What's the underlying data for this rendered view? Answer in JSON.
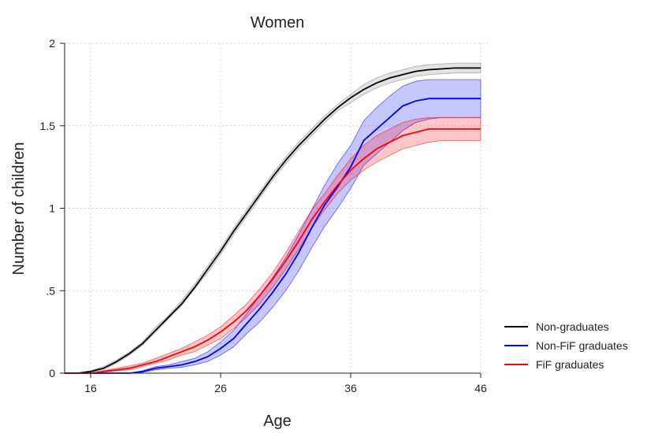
{
  "chart_data": {
    "type": "line",
    "title": "Women",
    "xlabel": "Age",
    "ylabel": "Number of children",
    "xlim": [
      14,
      46
    ],
    "ylim": [
      0,
      2
    ],
    "xticks": [
      16,
      26,
      36,
      46
    ],
    "xtick_labels": [
      "16",
      "26",
      "36",
      "46"
    ],
    "yticks": [
      0,
      0.5,
      1,
      1.5,
      2
    ],
    "ytick_labels": [
      "0",
      ".5",
      "1",
      "1.5",
      "2"
    ],
    "grid": true,
    "legend_position": "bottom-right",
    "series": [
      {
        "name": "Non-graduates",
        "color": "#000000",
        "band_color": "#808080",
        "x": [
          14,
          15,
          16,
          17,
          18,
          19,
          20,
          21,
          22,
          23,
          24,
          25,
          26,
          27,
          28,
          29,
          30,
          31,
          32,
          33,
          34,
          35,
          36,
          37,
          38,
          39,
          40,
          41,
          42,
          43,
          44,
          45,
          46
        ],
        "values": [
          0,
          0,
          0.01,
          0.03,
          0.07,
          0.12,
          0.18,
          0.26,
          0.34,
          0.42,
          0.52,
          0.63,
          0.74,
          0.86,
          0.97,
          1.08,
          1.19,
          1.29,
          1.38,
          1.46,
          1.54,
          1.61,
          1.67,
          1.72,
          1.76,
          1.79,
          1.81,
          1.83,
          1.84,
          1.845,
          1.85,
          1.85,
          1.85
        ],
        "lower": [
          0,
          0,
          0.005,
          0.02,
          0.06,
          0.11,
          0.17,
          0.25,
          0.33,
          0.41,
          0.51,
          0.61,
          0.72,
          0.84,
          0.95,
          1.06,
          1.17,
          1.27,
          1.36,
          1.44,
          1.52,
          1.59,
          1.64,
          1.69,
          1.73,
          1.76,
          1.78,
          1.8,
          1.81,
          1.815,
          1.82,
          1.82,
          1.82
        ],
        "upper": [
          0,
          0,
          0.015,
          0.04,
          0.08,
          0.13,
          0.19,
          0.28,
          0.35,
          0.44,
          0.54,
          0.65,
          0.76,
          0.88,
          0.99,
          1.1,
          1.21,
          1.31,
          1.4,
          1.48,
          1.56,
          1.63,
          1.69,
          1.75,
          1.79,
          1.82,
          1.84,
          1.86,
          1.87,
          1.875,
          1.88,
          1.88,
          1.88
        ]
      },
      {
        "name": "Non-FiF graduates",
        "color": "#0000ff",
        "band_color": "#0000ff",
        "x": [
          14,
          15,
          16,
          17,
          18,
          19,
          20,
          21,
          22,
          23,
          24,
          25,
          26,
          27,
          28,
          29,
          30,
          31,
          32,
          33,
          34,
          35,
          36,
          37,
          38,
          39,
          40,
          41,
          42,
          43,
          44,
          45,
          46
        ],
        "values": [
          0,
          0,
          0,
          0,
          0,
          0,
          0.01,
          0.03,
          0.04,
          0.05,
          0.07,
          0.1,
          0.15,
          0.21,
          0.3,
          0.39,
          0.49,
          0.6,
          0.73,
          0.88,
          1.02,
          1.13,
          1.25,
          1.41,
          1.48,
          1.55,
          1.62,
          1.65,
          1.665,
          1.665,
          1.665,
          1.665,
          1.665
        ],
        "lower": [
          0,
          0,
          0,
          0,
          0,
          0,
          0.005,
          0.02,
          0.03,
          0.035,
          0.05,
          0.07,
          0.11,
          0.16,
          0.24,
          0.31,
          0.4,
          0.5,
          0.62,
          0.76,
          0.89,
          1.0,
          1.12,
          1.26,
          1.33,
          1.4,
          1.47,
          1.52,
          1.54,
          1.55,
          1.55,
          1.55,
          1.55
        ],
        "upper": [
          0,
          0,
          0,
          0,
          0,
          0,
          0.015,
          0.04,
          0.05,
          0.07,
          0.09,
          0.13,
          0.19,
          0.26,
          0.36,
          0.47,
          0.58,
          0.7,
          0.84,
          0.99,
          1.14,
          1.27,
          1.38,
          1.53,
          1.61,
          1.68,
          1.74,
          1.77,
          1.78,
          1.78,
          1.78,
          1.78,
          1.78
        ]
      },
      {
        "name": "FiF graduates",
        "color": "#ff0000",
        "band_color": "#ff0000",
        "x": [
          14,
          15,
          16,
          17,
          18,
          19,
          20,
          21,
          22,
          23,
          24,
          25,
          26,
          27,
          28,
          29,
          30,
          31,
          32,
          33,
          34,
          35,
          36,
          37,
          38,
          39,
          40,
          41,
          42,
          43,
          44,
          45,
          46
        ],
        "values": [
          0,
          0,
          0,
          0.01,
          0.02,
          0.03,
          0.05,
          0.07,
          0.1,
          0.13,
          0.16,
          0.2,
          0.25,
          0.31,
          0.38,
          0.47,
          0.57,
          0.68,
          0.8,
          0.93,
          1.04,
          1.14,
          1.23,
          1.3,
          1.36,
          1.4,
          1.44,
          1.46,
          1.48,
          1.48,
          1.48,
          1.48,
          1.48
        ],
        "lower": [
          0,
          0,
          0,
          0.005,
          0.015,
          0.02,
          0.04,
          0.06,
          0.08,
          0.11,
          0.13,
          0.17,
          0.21,
          0.27,
          0.34,
          0.42,
          0.52,
          0.63,
          0.75,
          0.88,
          0.99,
          1.09,
          1.17,
          1.23,
          1.28,
          1.32,
          1.36,
          1.38,
          1.4,
          1.41,
          1.41,
          1.41,
          1.41
        ],
        "upper": [
          0,
          0,
          0,
          0.015,
          0.03,
          0.045,
          0.06,
          0.09,
          0.12,
          0.15,
          0.19,
          0.23,
          0.28,
          0.35,
          0.42,
          0.51,
          0.61,
          0.73,
          0.86,
          0.99,
          1.09,
          1.2,
          1.3,
          1.38,
          1.44,
          1.48,
          1.52,
          1.54,
          1.55,
          1.55,
          1.55,
          1.55,
          1.55
        ]
      }
    ]
  }
}
